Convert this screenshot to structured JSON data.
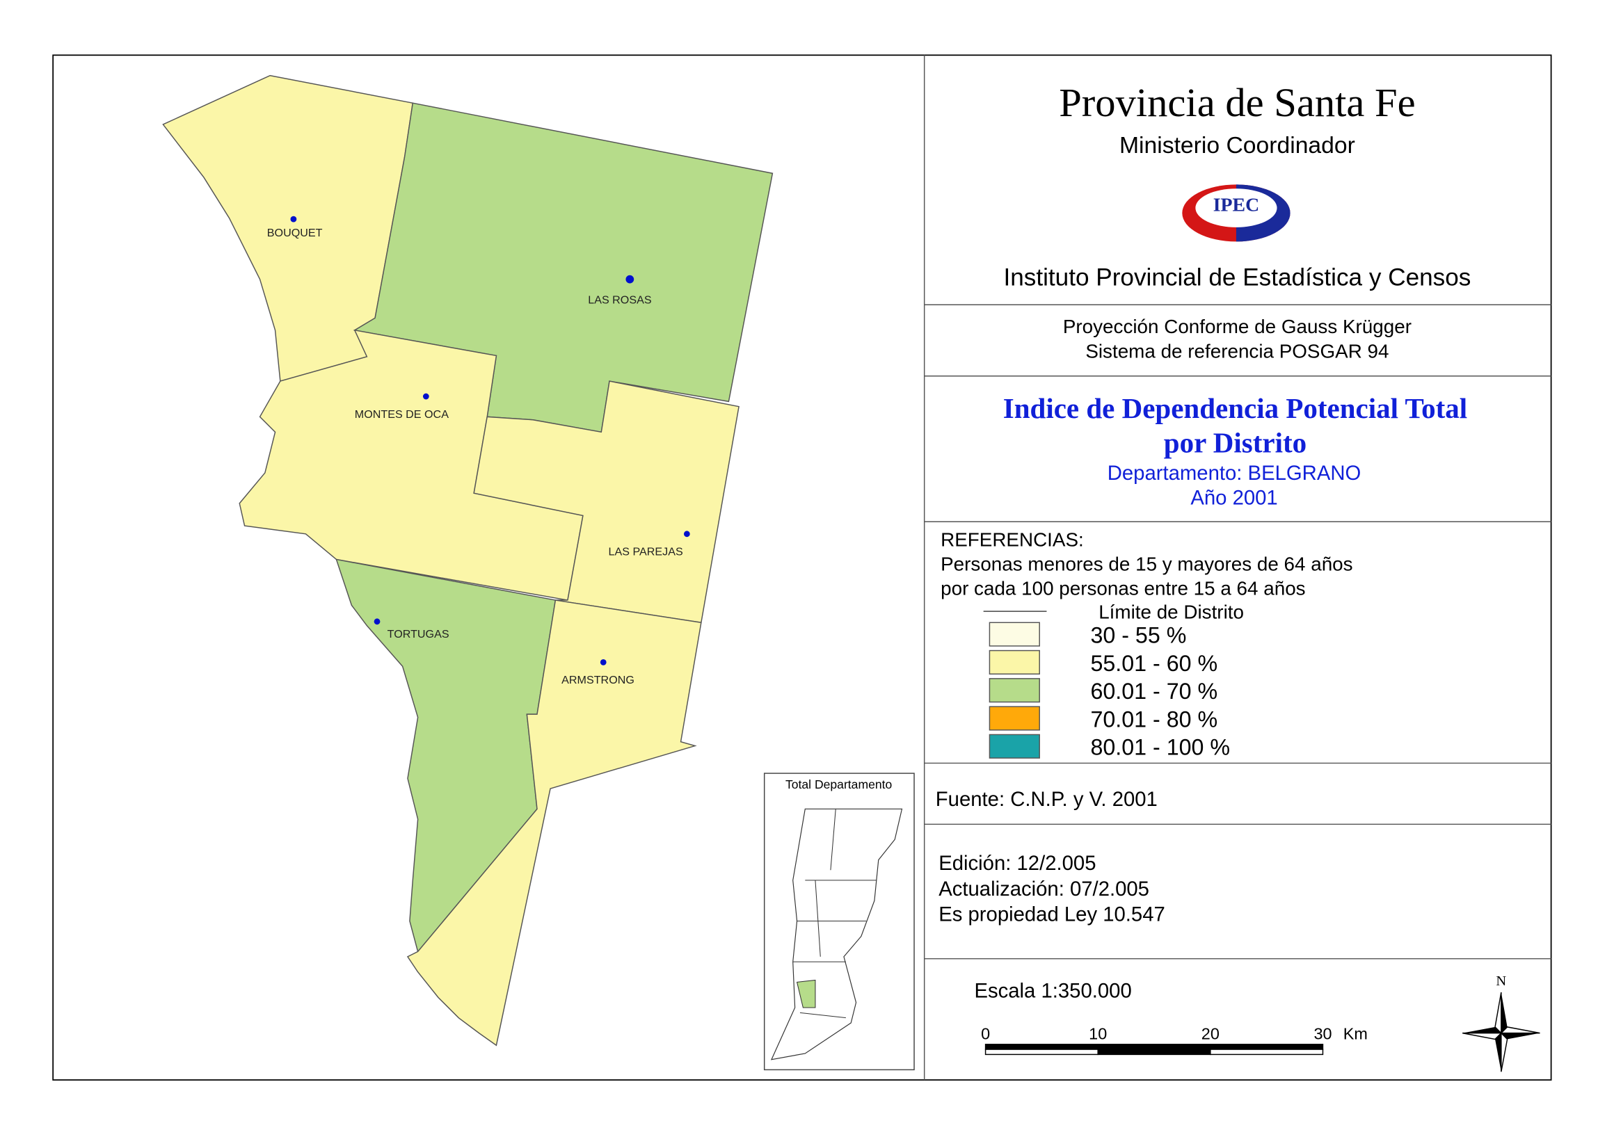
{
  "header": {
    "title": "Provincia de Santa Fe",
    "subtitle": "Ministerio Coordinador",
    "logo": "IPEC",
    "institute": "Instituto Provincial de Estadística y Censos"
  },
  "projection": [
    "Proyección Conforme de Gauss Krügger",
    "Sistema de referencia POSGAR 94"
  ],
  "map_title": {
    "lines": [
      "Indice de Dependencia Potencial Total",
      "por Distrito"
    ],
    "department": "Departamento:  BELGRANO",
    "year": "Año 2001"
  },
  "references": {
    "heading": "REFERENCIAS:",
    "description": [
      "Personas menores de 15 y mayores de 64 años",
      "por cada 100 personas entre 15 a 64 años"
    ],
    "boundary": "Límite de Distrito",
    "items": [
      {
        "label": "30 - 55 %",
        "color": "#fdfce4"
      },
      {
        "label": "55.01 - 60 %",
        "color": "#fbf6a8"
      },
      {
        "label": "60.01 - 70 %",
        "color": "#b6dc8a"
      },
      {
        "label": "70.01 - 80 %",
        "color": "#ffa90a"
      },
      {
        "label": "80.01 - 100 %",
        "color": "#1aa3a8"
      }
    ]
  },
  "source": "Fuente:  C.N.P. y V. 2001",
  "edition": [
    "Edición:  12/2.005",
    "Actualización:  07/2.005",
    "Es propiedad Ley 10.547"
  ],
  "scale": {
    "label": "Escala 1:350.000",
    "ticks": [
      0,
      10,
      20,
      30
    ],
    "unit": "Km"
  },
  "north": "N",
  "inset_title": "Total Departamento",
  "districts": [
    "BOUQUET",
    "LAS ROSAS",
    "MONTES DE OCA",
    "LAS PAREJAS",
    "TORTUGAS",
    "ARMSTRONG"
  ]
}
